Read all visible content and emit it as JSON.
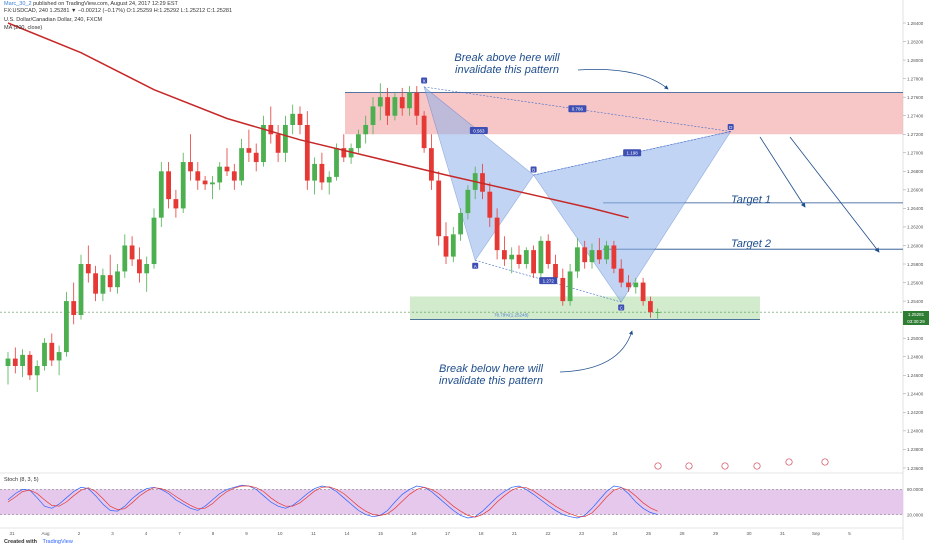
{
  "header": {
    "author": "Marc_30_2",
    "published": "published on TradingView.com, August 24, 2017 12:29 EST",
    "quote": "FX:USDCAD, 240  1.25281 ▼ −0.00212 (−0.17%) O:1.25259 H:1.25292 L:1.25212 C:1.25281",
    "symbol_desc": "U.S. Dollar/Canadian Dollar, 240, FXCM",
    "ma_label": "MA (200, close)"
  },
  "watermark": {
    "symbol": "USDCAD, 240",
    "name": "U.S. Dollar/Canadian Dollar"
  },
  "annotations": {
    "break_above": [
      "Break above here will",
      "invalidate this pattern"
    ],
    "break_below": [
      "Break below here will",
      "invalidate this pattern"
    ],
    "target1": "Target 1",
    "target2": "Target 2"
  },
  "pattern": {
    "points": {
      "X": "X",
      "A": "A",
      "B": "B",
      "C": "C",
      "D": "D"
    },
    "ratios": {
      "xb": "0.563",
      "xd": "0.786",
      "bd": "1.198",
      "ac": "1.272"
    },
    "d_target": "78.79%(1.25248)"
  },
  "price_labels": {
    "last": "1.25281",
    "countdown": "03:30:29"
  },
  "indicator": {
    "label": "Stoch (8, 3, 5)",
    "axis": [
      "80.0000",
      "20.0000"
    ]
  },
  "footer": {
    "created": "Created with",
    "brand": "TradingView"
  },
  "colors": {
    "bull": "#4caf50",
    "bear": "#e53935",
    "ma": "#c62828",
    "resistance_zone": "#f4b4b4",
    "support_zone": "#c8e6c0",
    "pattern_fill": "#8fb1ea",
    "stoch_bg": "#e1bee7"
  },
  "chart_data": {
    "type": "candlestick",
    "symbol": "FX:USDCAD",
    "interval": "240",
    "y_axis_ticks": [
      1.284,
      1.282,
      1.28,
      1.278,
      1.276,
      1.274,
      1.272,
      1.27,
      1.268,
      1.266,
      1.264,
      1.262,
      1.26,
      1.258,
      1.256,
      1.254,
      1.252,
      1.25,
      1.248,
      1.246,
      1.244,
      1.242,
      1.24,
      1.238,
      1.236
    ],
    "x_axis_ticks": [
      "31",
      "Aug",
      "2",
      "3",
      "4",
      "7",
      "8",
      "9",
      "10",
      "11",
      "14",
      "15",
      "16",
      "17",
      "18",
      "21",
      "22",
      "23",
      "24",
      "25",
      "28",
      "29",
      "30",
      "31",
      "Sep",
      "5"
    ],
    "candles": [
      [
        1.247,
        1.2485,
        1.245,
        1.2478
      ],
      [
        1.2478,
        1.249,
        1.2462,
        1.247
      ],
      [
        1.247,
        1.2488,
        1.2458,
        1.2482
      ],
      [
        1.2482,
        1.2486,
        1.2455,
        1.246
      ],
      [
        1.246,
        1.2476,
        1.2442,
        1.247
      ],
      [
        1.247,
        1.25,
        1.2465,
        1.2495
      ],
      [
        1.2495,
        1.2505,
        1.247,
        1.2476
      ],
      [
        1.2476,
        1.2492,
        1.246,
        1.2485
      ],
      [
        1.2485,
        1.255,
        1.248,
        1.254
      ],
      [
        1.254,
        1.256,
        1.2515,
        1.2525
      ],
      [
        1.2525,
        1.259,
        1.252,
        1.258
      ],
      [
        1.258,
        1.26,
        1.256,
        1.257
      ],
      [
        1.257,
        1.2578,
        1.254,
        1.2548
      ],
      [
        1.2548,
        1.2575,
        1.254,
        1.2568
      ],
      [
        1.2568,
        1.259,
        1.255,
        1.2555
      ],
      [
        1.2555,
        1.258,
        1.2548,
        1.2572
      ],
      [
        1.2572,
        1.2612,
        1.2565,
        1.26
      ],
      [
        1.26,
        1.261,
        1.2578,
        1.2585
      ],
      [
        1.2585,
        1.2598,
        1.256,
        1.257
      ],
      [
        1.257,
        1.2588,
        1.255,
        1.258
      ],
      [
        1.258,
        1.264,
        1.2575,
        1.263
      ],
      [
        1.263,
        1.269,
        1.262,
        1.268
      ],
      [
        1.268,
        1.269,
        1.264,
        1.265
      ],
      [
        1.265,
        1.266,
        1.263,
        1.264
      ],
      [
        1.264,
        1.27,
        1.2635,
        1.269
      ],
      [
        1.269,
        1.272,
        1.267,
        1.268
      ],
      [
        1.268,
        1.269,
        1.266,
        1.267
      ],
      [
        1.267,
        1.2675,
        1.266,
        1.2666
      ],
      [
        1.2666,
        1.2675,
        1.265,
        1.2668
      ],
      [
        1.2668,
        1.269,
        1.266,
        1.2685
      ],
      [
        1.2685,
        1.2705,
        1.2675,
        1.268
      ],
      [
        1.268,
        1.2688,
        1.266,
        1.267
      ],
      [
        1.267,
        1.2715,
        1.2665,
        1.2705
      ],
      [
        1.2705,
        1.2725,
        1.269,
        1.27
      ],
      [
        1.27,
        1.271,
        1.268,
        1.269
      ],
      [
        1.269,
        1.274,
        1.2685,
        1.273
      ],
      [
        1.273,
        1.275,
        1.271,
        1.272
      ],
      [
        1.272,
        1.273,
        1.269,
        1.27
      ],
      [
        1.27,
        1.274,
        1.269,
        1.273
      ],
      [
        1.273,
        1.2752,
        1.272,
        1.2742
      ],
      [
        1.2742,
        1.275,
        1.272,
        1.273
      ],
      [
        1.273,
        1.2745,
        1.266,
        1.267
      ],
      [
        1.267,
        1.2695,
        1.2655,
        1.2688
      ],
      [
        1.2688,
        1.27,
        1.266,
        1.2668
      ],
      [
        1.2668,
        1.268,
        1.2655,
        1.2674
      ],
      [
        1.2674,
        1.271,
        1.267,
        1.2705
      ],
      [
        1.2705,
        1.272,
        1.269,
        1.2695
      ],
      [
        1.2695,
        1.271,
        1.2688,
        1.2705
      ],
      [
        1.2705,
        1.2725,
        1.27,
        1.272
      ],
      [
        1.272,
        1.274,
        1.271,
        1.273
      ],
      [
        1.273,
        1.276,
        1.272,
        1.275
      ],
      [
        1.275,
        1.2775,
        1.2735,
        1.276
      ],
      [
        1.276,
        1.277,
        1.273,
        1.274
      ],
      [
        1.274,
        1.2765,
        1.2735,
        1.276
      ],
      [
        1.276,
        1.277,
        1.274,
        1.2748
      ],
      [
        1.2748,
        1.2772,
        1.274,
        1.2765
      ],
      [
        1.2765,
        1.2772,
        1.273,
        1.274
      ],
      [
        1.274,
        1.2745,
        1.27,
        1.2705
      ],
      [
        1.2705,
        1.272,
        1.266,
        1.267
      ],
      [
        1.267,
        1.268,
        1.26,
        1.261
      ],
      [
        1.261,
        1.2625,
        1.258,
        1.2588
      ],
      [
        1.2588,
        1.262,
        1.2582,
        1.2612
      ],
      [
        1.2612,
        1.264,
        1.2605,
        1.2635
      ],
      [
        1.2635,
        1.2665,
        1.2628,
        1.266
      ],
      [
        1.266,
        1.2685,
        1.265,
        1.2678
      ],
      [
        1.2678,
        1.2688,
        1.265,
        1.2658
      ],
      [
        1.2658,
        1.2668,
        1.262,
        1.263
      ],
      [
        1.263,
        1.264,
        1.2585,
        1.2595
      ],
      [
        1.2595,
        1.261,
        1.2578,
        1.2585
      ],
      [
        1.2585,
        1.2598,
        1.257,
        1.259
      ],
      [
        1.259,
        1.26,
        1.2575,
        1.258
      ],
      [
        1.258,
        1.2598,
        1.2575,
        1.2595
      ],
      [
        1.2595,
        1.26,
        1.2565,
        1.257
      ],
      [
        1.257,
        1.261,
        1.2565,
        1.2605
      ],
      [
        1.2605,
        1.2612,
        1.2575,
        1.258
      ],
      [
        1.258,
        1.259,
        1.256,
        1.2565
      ],
      [
        1.2565,
        1.2575,
        1.2535,
        1.254
      ],
      [
        1.254,
        1.258,
        1.2535,
        1.2572
      ],
      [
        1.2572,
        1.2608,
        1.2565,
        1.2598
      ],
      [
        1.2598,
        1.2605,
        1.2575,
        1.2582
      ],
      [
        1.2582,
        1.2602,
        1.2575,
        1.2595
      ],
      [
        1.2595,
        1.2608,
        1.258,
        1.2585
      ],
      [
        1.2585,
        1.2605,
        1.258,
        1.26
      ],
      [
        1.26,
        1.2605,
        1.257,
        1.2575
      ],
      [
        1.2575,
        1.2585,
        1.2555,
        1.256
      ],
      [
        1.256,
        1.2568,
        1.255,
        1.2555
      ],
      [
        1.2555,
        1.2565,
        1.2548,
        1.256
      ],
      [
        1.256,
        1.2565,
        1.2535,
        1.254
      ],
      [
        1.254,
        1.2545,
        1.2522,
        1.2528
      ],
      [
        1.2528,
        1.2532,
        1.2521,
        1.2528
      ]
    ],
    "ma200": [
      [
        0,
        1.284
      ],
      [
        10,
        1.2808
      ],
      [
        20,
        1.2768
      ],
      [
        30,
        1.2737
      ],
      [
        40,
        1.2714
      ],
      [
        50,
        1.2695
      ],
      [
        60,
        1.2676
      ],
      [
        70,
        1.2658
      ],
      [
        80,
        1.264
      ],
      [
        85,
        1.263
      ]
    ],
    "resistance_zone": [
      1.272,
      1.2765
    ],
    "support_zone": [
      1.252,
      1.2545
    ],
    "targets": [
      1.2646,
      1.2596
    ],
    "pattern_xabcd": {
      "X": [
        57,
        1.2771
      ],
      "A": [
        64,
        1.2584
      ],
      "B": [
        72,
        1.2676
      ],
      "C": [
        84,
        1.2539
      ],
      "D": [
        99,
        1.2723
      ]
    },
    "d_level": 1.25248,
    "last_price": 1.25281,
    "stochastic": {
      "ylim": [
        0,
        100
      ],
      "levels": [
        80,
        20
      ],
      "k": [
        55,
        70,
        80,
        78,
        60,
        40,
        35,
        45,
        60,
        75,
        85,
        82,
        65,
        45,
        30,
        28,
        40,
        58,
        72,
        82,
        85,
        80,
        70,
        55,
        45,
        35,
        30,
        40,
        55,
        70,
        80,
        85,
        90,
        88,
        80,
        65,
        50,
        40,
        35,
        42,
        55,
        70,
        82,
        88,
        85,
        75,
        60,
        45,
        30,
        20,
        15,
        18,
        30,
        50,
        68,
        80,
        88,
        85,
        75,
        60,
        45,
        30,
        18,
        12,
        15,
        28,
        45,
        62,
        75,
        85,
        88,
        80,
        68,
        55,
        42,
        30,
        20,
        15,
        12,
        18,
        35,
        55,
        75,
        88,
        85,
        70,
        50,
        35,
        25,
        20
      ],
      "d": [
        50,
        62,
        75,
        78,
        70,
        55,
        42,
        40,
        50,
        65,
        78,
        84,
        75,
        58,
        40,
        32,
        34,
        48,
        64,
        76,
        84,
        82,
        75,
        63,
        52,
        42,
        34,
        35,
        46,
        62,
        75,
        83,
        88,
        88,
        84,
        75,
        60,
        48,
        40,
        40,
        48,
        62,
        76,
        85,
        86,
        80,
        70,
        55,
        40,
        28,
        20,
        18,
        22,
        35,
        52,
        68,
        80,
        85,
        80,
        70,
        55,
        40,
        28,
        18,
        14,
        20,
        32,
        50,
        65,
        78,
        85,
        84,
        76,
        64,
        52,
        40,
        30,
        22,
        16,
        15,
        24,
        42,
        62,
        78,
        84,
        78,
        64,
        48,
        36,
        28
      ]
    }
  }
}
